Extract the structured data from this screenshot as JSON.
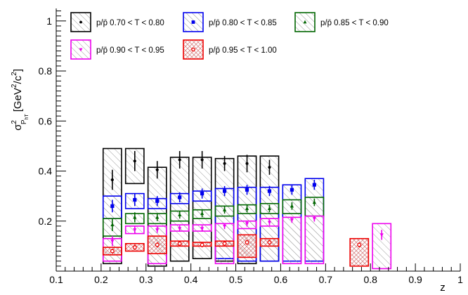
{
  "chart_data": {
    "type": "scatter",
    "title": "",
    "xlabel": "z",
    "ylabel_base": "σ",
    "ylabel_sup": "2",
    "ylabel_sub": "P",
    "ylabel_subsub": "hT",
    "ylabel_units": "[GeV",
    "ylabel_units_sup1": "2",
    "ylabel_units_mid": "/c",
    "ylabel_units_sup2": "2",
    "ylabel_units_end": "]",
    "xlim": [
      0.1,
      1.0
    ],
    "ylim": [
      0.0,
      1.05
    ],
    "x_major_ticks": [
      0.1,
      0.2,
      0.3,
      0.4,
      0.5,
      0.6,
      0.7,
      0.8,
      0.9,
      1.0
    ],
    "x_tick_labels": [
      "0.1",
      "0.2",
      "0.3",
      "0.4",
      "0.5",
      "0.6",
      "0.7",
      "0.8",
      "0.9",
      "1"
    ],
    "y_major_ticks": [
      0.2,
      0.4,
      0.6,
      0.8,
      1.0
    ],
    "y_tick_labels": [
      "0.2",
      "0.4",
      "0.6",
      "0.8",
      "1"
    ],
    "grid": false,
    "legend_position": "top",
    "series": [
      {
        "name": "p/p̄ 0.70 < T < 0.80",
        "color": "#000000",
        "marker": "circle",
        "hatch": "diagonal",
        "points": [
          {
            "x": 0.225,
            "y": 0.365,
            "err": 0.04,
            "sys_lo": 0.03,
            "sys_hi": 0.49
          },
          {
            "x": 0.275,
            "y": 0.44,
            "err": 0.04,
            "sys_lo": 0.35,
            "sys_hi": 0.49
          },
          {
            "x": 0.325,
            "y": 0.405,
            "err": 0.035,
            "sys_lo": 0.02,
            "sys_hi": 0.415
          },
          {
            "x": 0.375,
            "y": 0.445,
            "err": 0.035,
            "sys_lo": 0.04,
            "sys_hi": 0.455
          },
          {
            "x": 0.425,
            "y": 0.445,
            "err": 0.035,
            "sys_lo": 0.05,
            "sys_hi": 0.455
          },
          {
            "x": 0.475,
            "y": 0.43,
            "err": 0.03,
            "sys_lo": 0.04,
            "sys_hi": 0.45
          },
          {
            "x": 0.525,
            "y": 0.43,
            "err": 0.035,
            "sys_lo": 0.03,
            "sys_hi": 0.46
          },
          {
            "x": 0.575,
            "y": 0.415,
            "err": 0.03,
            "sys_lo": 0.04,
            "sys_hi": 0.46
          }
        ]
      },
      {
        "name": "p/p̄ 0.80 < T < 0.85",
        "color": "#0000ee",
        "marker": "square",
        "hatch": "diagonal",
        "points": [
          {
            "x": 0.225,
            "y": 0.26,
            "err": 0.025,
            "sys_lo": 0.21,
            "sys_hi": 0.3
          },
          {
            "x": 0.275,
            "y": 0.285,
            "err": 0.025,
            "sys_lo": 0.25,
            "sys_hi": 0.31
          },
          {
            "x": 0.325,
            "y": 0.28,
            "err": 0.02,
            "sys_lo": 0.25,
            "sys_hi": 0.29
          },
          {
            "x": 0.375,
            "y": 0.295,
            "err": 0.02,
            "sys_lo": 0.27,
            "sys_hi": 0.31
          },
          {
            "x": 0.425,
            "y": 0.31,
            "err": 0.02,
            "sys_lo": 0.28,
            "sys_hi": 0.32
          },
          {
            "x": 0.475,
            "y": 0.32,
            "err": 0.02,
            "sys_lo": 0.05,
            "sys_hi": 0.33
          },
          {
            "x": 0.525,
            "y": 0.325,
            "err": 0.02,
            "sys_lo": 0.04,
            "sys_hi": 0.335
          },
          {
            "x": 0.575,
            "y": 0.32,
            "err": 0.02,
            "sys_lo": 0.04,
            "sys_hi": 0.335
          },
          {
            "x": 0.625,
            "y": 0.325,
            "err": 0.02,
            "sys_lo": 0.04,
            "sys_hi": 0.345
          },
          {
            "x": 0.675,
            "y": 0.345,
            "err": 0.02,
            "sys_lo": 0.04,
            "sys_hi": 0.37
          }
        ]
      },
      {
        "name": "p/p̄ 0.85 < T < 0.90",
        "color": "#006600",
        "marker": "triangle",
        "hatch": "diagonal",
        "points": [
          {
            "x": 0.225,
            "y": 0.185,
            "err": 0.025,
            "sys_lo": 0.14,
            "sys_hi": 0.21
          },
          {
            "x": 0.275,
            "y": 0.215,
            "err": 0.02,
            "sys_lo": 0.19,
            "sys_hi": 0.23
          },
          {
            "x": 0.325,
            "y": 0.215,
            "err": 0.015,
            "sys_lo": 0.19,
            "sys_hi": 0.23
          },
          {
            "x": 0.375,
            "y": 0.225,
            "err": 0.015,
            "sys_lo": 0.2,
            "sys_hi": 0.24
          },
          {
            "x": 0.425,
            "y": 0.23,
            "err": 0.015,
            "sys_lo": 0.21,
            "sys_hi": 0.245
          },
          {
            "x": 0.475,
            "y": 0.245,
            "err": 0.015,
            "sys_lo": 0.22,
            "sys_hi": 0.26
          },
          {
            "x": 0.525,
            "y": 0.25,
            "err": 0.015,
            "sys_lo": 0.23,
            "sys_hi": 0.265
          },
          {
            "x": 0.575,
            "y": 0.25,
            "err": 0.015,
            "sys_lo": 0.23,
            "sys_hi": 0.27
          },
          {
            "x": 0.625,
            "y": 0.26,
            "err": 0.015,
            "sys_lo": 0.23,
            "sys_hi": 0.285
          },
          {
            "x": 0.675,
            "y": 0.275,
            "err": 0.015,
            "sys_lo": 0.22,
            "sys_hi": 0.295
          }
        ]
      },
      {
        "name": "p/p̄ 0.90 < T < 0.95",
        "color": "#ee00ee",
        "marker": "triangle-down",
        "hatch": "diagonal",
        "points": [
          {
            "x": 0.225,
            "y": 0.12,
            "err": 0.02,
            "sys_lo": 0.04,
            "sys_hi": 0.13
          },
          {
            "x": 0.275,
            "y": 0.165,
            "err": 0.015,
            "sys_lo": 0.15,
            "sys_hi": 0.18
          },
          {
            "x": 0.325,
            "y": 0.165,
            "err": 0.012,
            "sys_lo": 0.03,
            "sys_hi": 0.18
          },
          {
            "x": 0.375,
            "y": 0.17,
            "err": 0.012,
            "sys_lo": 0.16,
            "sys_hi": 0.185
          },
          {
            "x": 0.425,
            "y": 0.17,
            "err": 0.012,
            "sys_lo": 0.16,
            "sys_hi": 0.185
          },
          {
            "x": 0.475,
            "y": 0.18,
            "err": 0.012,
            "sys_lo": 0.03,
            "sys_hi": 0.19
          },
          {
            "x": 0.525,
            "y": 0.19,
            "err": 0.012,
            "sys_lo": 0.17,
            "sys_hi": 0.2
          },
          {
            "x": 0.575,
            "y": 0.195,
            "err": 0.012,
            "sys_lo": 0.18,
            "sys_hi": 0.21
          },
          {
            "x": 0.625,
            "y": 0.205,
            "err": 0.012,
            "sys_lo": 0.03,
            "sys_hi": 0.215
          },
          {
            "x": 0.675,
            "y": 0.21,
            "err": 0.012,
            "sys_lo": 0.03,
            "sys_hi": 0.22
          },
          {
            "x": 0.825,
            "y": 0.145,
            "err": 0.02,
            "sys_lo": 0.01,
            "sys_hi": 0.19
          }
        ]
      },
      {
        "name": "p/p̄ 0.95 < T < 1.00",
        "color": "#ee0000",
        "marker": "open-circle",
        "hatch": "cross",
        "points": [
          {
            "x": 0.225,
            "y": 0.08,
            "err": 0.01,
            "sys_lo": 0.065,
            "sys_hi": 0.095
          },
          {
            "x": 0.275,
            "y": 0.095,
            "err": 0.01,
            "sys_lo": 0.08,
            "sys_hi": 0.11
          },
          {
            "x": 0.325,
            "y": 0.105,
            "err": 0.01,
            "sys_lo": 0.07,
            "sys_hi": 0.14
          },
          {
            "x": 0.375,
            "y": 0.11,
            "err": 0.01,
            "sys_lo": 0.1,
            "sys_hi": 0.12
          },
          {
            "x": 0.425,
            "y": 0.105,
            "err": 0.01,
            "sys_lo": 0.1,
            "sys_hi": 0.115
          },
          {
            "x": 0.475,
            "y": 0.11,
            "err": 0.01,
            "sys_lo": 0.1,
            "sys_hi": 0.12
          },
          {
            "x": 0.525,
            "y": 0.115,
            "err": 0.01,
            "sys_lo": 0.055,
            "sys_hi": 0.145
          },
          {
            "x": 0.575,
            "y": 0.115,
            "err": 0.01,
            "sys_lo": 0.1,
            "sys_hi": 0.13
          },
          {
            "x": 0.775,
            "y": 0.105,
            "err": 0.01,
            "sys_lo": 0.02,
            "sys_hi": 0.13
          }
        ]
      }
    ]
  }
}
